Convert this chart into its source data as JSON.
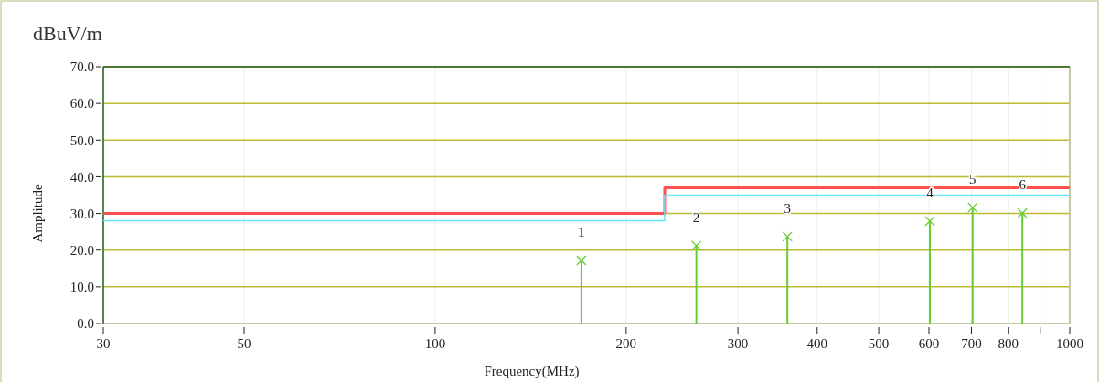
{
  "chart_data": {
    "type": "step",
    "title": "dBuV/m",
    "xlabel": "Frequency(MHz)",
    "ylabel": "Amplitude",
    "log": "x",
    "xlim": [
      30,
      1000
    ],
    "xticks": [
      30,
      50,
      100,
      200,
      300,
      400,
      500,
      600,
      700,
      800,
      {
        "value": 900,
        "label": null
      },
      1000
    ],
    "ylim": [
      0,
      70
    ],
    "yticks": [
      {
        "value": 0,
        "label": "0.0"
      },
      {
        "value": 10,
        "label": "10.0"
      },
      {
        "value": 20,
        "label": "20.0"
      },
      {
        "value": 30,
        "label": "30.0"
      },
      {
        "value": 40,
        "label": "40.0"
      },
      {
        "value": 50,
        "label": "50.0"
      },
      {
        "value": 60,
        "label": "60.0"
      },
      {
        "value": 70,
        "label": "70.0"
      }
    ],
    "grid": true,
    "series": [
      {
        "type": "step",
        "color": "#ff5050",
        "x": [
          30,
          230,
          1000
        ],
        "values": [
          30,
          37,
          37
        ]
      },
      {
        "type": "step",
        "color": "#66e6ff",
        "x": [
          30,
          230,
          1000
        ],
        "values": [
          28,
          35,
          35
        ]
      },
      {
        "type": "lollipop",
        "color": "#66cc33",
        "marker": "cross",
        "x": [
          170,
          258,
          359,
          602,
          703,
          842
        ],
        "values": [
          17.2,
          21.2,
          23.7,
          27.9,
          31.6,
          30.1
        ]
      }
    ],
    "annotations": [
      {
        "text": "1",
        "x": 170,
        "y": 17.2
      },
      {
        "text": "2",
        "x": 258,
        "y": 21.2
      },
      {
        "text": "3",
        "x": 359,
        "y": 23.7
      },
      {
        "text": "4",
        "x": 602,
        "y": 27.9
      },
      {
        "text": "5",
        "x": 703,
        "y": 31.6
      },
      {
        "text": "6",
        "x": 842,
        "y": 30.1
      }
    ]
  }
}
